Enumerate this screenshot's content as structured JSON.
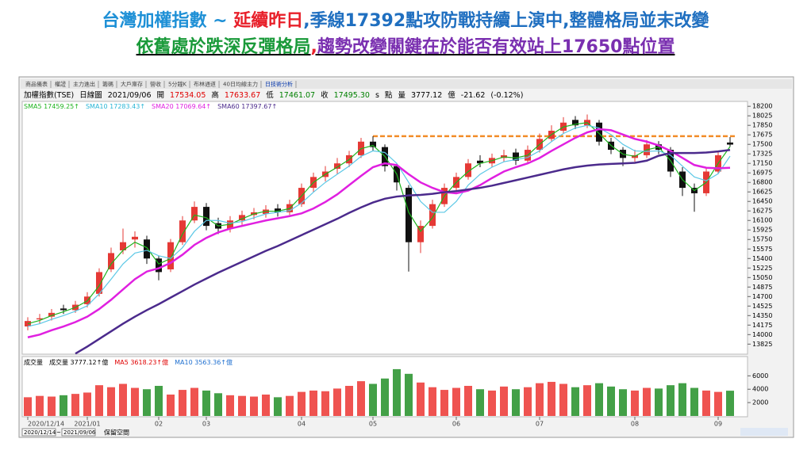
{
  "headline": {
    "line1": [
      {
        "text": "台灣加權指數 ~ ",
        "color": "#1e90d6"
      },
      {
        "text": "延續昨日",
        "color": "#e8202a"
      },
      {
        "text": ",季線17392點攻防戰持續上演中,整體格局並末改變",
        "color": "#1f6fc0"
      }
    ],
    "line2": [
      {
        "text": "依舊處於跌深反彈格局",
        "color": "#1a9a3a"
      },
      {
        "text": ",",
        "color": "#e8202a"
      },
      {
        "text": "趨勢改變關鍵在於能否有效站上17650點位置",
        "color": "#7a2fb0"
      }
    ]
  },
  "tabs": [
    "商品儀表",
    "權證",
    "主力進出",
    "籌碼",
    "大戶庫存",
    "營收",
    "5分鐘K",
    "布林通道",
    "40日均線主力",
    "日技術分析"
  ],
  "info": [
    {
      "text": "加權指數(TSE)",
      "color": "#000"
    },
    {
      "text": "日線圖",
      "color": "#000"
    },
    {
      "text": "2021/09/06",
      "color": "#000"
    },
    {
      "text": "開",
      "color": "#000"
    },
    {
      "text": "17534.05",
      "color": "#e00000"
    },
    {
      "text": "高",
      "color": "#000"
    },
    {
      "text": "17633.67",
      "color": "#e00000"
    },
    {
      "text": "低",
      "color": "#000"
    },
    {
      "text": "17461.07",
      "color": "#008000"
    },
    {
      "text": "收",
      "color": "#000"
    },
    {
      "text": "17495.30",
      "color": "#008000"
    },
    {
      "text": "s",
      "color": "#000"
    },
    {
      "text": "點",
      "color": "#000"
    },
    {
      "text": "量",
      "color": "#000"
    },
    {
      "text": "3777.12",
      "color": "#000"
    },
    {
      "text": "億",
      "color": "#000"
    },
    {
      "text": "-21.62",
      "color": "#000"
    },
    {
      "text": "(-0.12%)",
      "color": "#000"
    }
  ],
  "ma_legend": [
    {
      "text": "SMA5 17459.25↑",
      "color": "#1db31d"
    },
    {
      "text": "SMA10 17283.43↑",
      "color": "#29b6d6"
    },
    {
      "text": "SMA20 17069.64↑",
      "color": "#e020e0"
    },
    {
      "text": "SMA60 17397.67↑",
      "color": "#4b2a8c"
    }
  ],
  "volume_legend": [
    {
      "text": "成交量",
      "color": "#000"
    },
    {
      "text": "成交量 3777.12↑億",
      "color": "#000"
    },
    {
      "text": "MA5 3618.23↑億",
      "color": "#e00000"
    },
    {
      "text": "MA10 3563.36↑億",
      "color": "#1e6fd0"
    }
  ],
  "toolbar": {
    "from": "2020/12/14",
    "sep": "~",
    "to": "2021/09/06",
    "space": "保留空間"
  },
  "chart_data": {
    "type": "candlestick",
    "categories": [
      "2020/12/14",
      null,
      null,
      null,
      null,
      "2021/01",
      null,
      null,
      null,
      null,
      null,
      "02",
      null,
      null,
      null,
      "03",
      null,
      null,
      null,
      null,
      null,
      null,
      null,
      "04",
      null,
      null,
      null,
      null,
      null,
      "05",
      null,
      null,
      null,
      null,
      null,
      null,
      "06",
      null,
      null,
      null,
      null,
      null,
      null,
      "07",
      null,
      null,
      null,
      null,
      null,
      null,
      null,
      "08",
      null,
      null,
      null,
      null,
      null,
      null,
      "09",
      null
    ],
    "open": [
      14150,
      14280,
      14330,
      14480,
      14450,
      14560,
      14750,
      15200,
      15550,
      15750,
      15750,
      15400,
      15200,
      15700,
      16100,
      16350,
      16050,
      15950,
      16100,
      16200,
      16220,
      16320,
      16250,
      16400,
      16700,
      16900,
      17050,
      17150,
      17300,
      17550,
      17450,
      17100,
      16700,
      15700,
      16000,
      16400,
      16700,
      16900,
      17200,
      17150,
      17250,
      17350,
      17200,
      17400,
      17600,
      17750,
      17950,
      17850,
      17900,
      17550,
      17400,
      17250,
      17300,
      17500,
      17400,
      17000,
      16700,
      16600,
      17000,
      17534.05
    ],
    "high": [
      14320,
      14380,
      14470,
      14550,
      14620,
      14780,
      15220,
      15600,
      15950,
      15900,
      15820,
      15450,
      15760,
      16180,
      16450,
      16420,
      16150,
      16180,
      16280,
      16330,
      16380,
      16400,
      16480,
      16780,
      16980,
      17100,
      17250,
      17380,
      17620,
      17650,
      17500,
      17150,
      16750,
      16100,
      16480,
      16780,
      16980,
      17230,
      17300,
      17330,
      17400,
      17420,
      17480,
      17700,
      17850,
      18000,
      18020,
      18050,
      17950,
      17620,
      17450,
      17400,
      17580,
      17560,
      17450,
      17080,
      16780,
      17080,
      17380,
      17633.67
    ],
    "low": [
      14080,
      14200,
      14260,
      14380,
      14400,
      14500,
      14700,
      15150,
      15480,
      15600,
      15300,
      15000,
      15150,
      15650,
      16050,
      15920,
      15850,
      15880,
      16020,
      16120,
      16150,
      16170,
      16200,
      16350,
      16620,
      16820,
      16950,
      17080,
      17250,
      17380,
      17000,
      16650,
      15160,
      15500,
      15950,
      16350,
      16620,
      16850,
      17080,
      17080,
      17180,
      17120,
      17150,
      17350,
      17550,
      17700,
      17780,
      17800,
      17480,
      17320,
      17100,
      17180,
      17250,
      17320,
      16900,
      16550,
      16260,
      16550,
      16950,
      17461.07
    ],
    "close": [
      14250,
      14300,
      14400,
      14450,
      14550,
      14700,
      15150,
      15500,
      15700,
      15800,
      15400,
      15150,
      15700,
      16100,
      16350,
      16000,
      15950,
      16100,
      16200,
      16250,
      16300,
      16250,
      16400,
      16700,
      16900,
      17000,
      17150,
      17300,
      17550,
      17450,
      17100,
      16800,
      15700,
      16000,
      16400,
      16700,
      16900,
      17150,
      17150,
      17250,
      17300,
      17200,
      17400,
      17600,
      17750,
      17900,
      17850,
      17950,
      17550,
      17400,
      17250,
      17300,
      17500,
      17400,
      17000,
      16700,
      16600,
      17000,
      17300,
      17495.3
    ],
    "up_color": "#e53935",
    "down_color": "#111111",
    "series": [
      {
        "name": "SMA5",
        "color": "#1db31d",
        "values": [
          14200,
          14260,
          14350,
          14420,
          14500,
          14620,
          14900,
          15300,
          15550,
          15700,
          15600,
          15300,
          15400,
          15850,
          16200,
          16150,
          16000,
          16030,
          16130,
          16220,
          16270,
          16270,
          16320,
          16550,
          16800,
          16950,
          17080,
          17220,
          17420,
          17480,
          17280,
          16950,
          16250,
          15900,
          16150,
          16550,
          16800,
          17000,
          17150,
          17200,
          17270,
          17250,
          17300,
          17500,
          17680,
          17820,
          17870,
          17900,
          17700,
          17480,
          17320,
          17280,
          17400,
          17450,
          17200,
          16850,
          16650,
          16800,
          17150,
          17459.25
        ]
      },
      {
        "name": "SMA10",
        "color": "#5cc8e6",
        "values": [
          14150,
          14200,
          14280,
          14350,
          14430,
          14530,
          14750,
          15020,
          15300,
          15500,
          15550,
          15450,
          15400,
          15600,
          15900,
          16100,
          16100,
          16050,
          16080,
          16150,
          16220,
          16250,
          16280,
          16420,
          16620,
          16800,
          16950,
          17100,
          17280,
          17380,
          17350,
          17150,
          16800,
          16450,
          16250,
          16250,
          16450,
          16750,
          16950,
          17080,
          17180,
          17220,
          17260,
          17380,
          17550,
          17700,
          17800,
          17850,
          17800,
          17680,
          17500,
          17380,
          17370,
          17380,
          17300,
          17100,
          16900,
          16830,
          16960,
          17283.43
        ]
      },
      {
        "name": "SMA20",
        "color": "#e020e0",
        "values": [
          13950,
          14000,
          14080,
          14150,
          14230,
          14330,
          14470,
          14640,
          14830,
          15020,
          15160,
          15220,
          15320,
          15470,
          15650,
          15780,
          15880,
          15950,
          16000,
          16050,
          16100,
          16140,
          16180,
          16230,
          16320,
          16440,
          16580,
          16750,
          16920,
          17080,
          17150,
          17120,
          16950,
          16800,
          16700,
          16620,
          16600,
          16650,
          16750,
          16880,
          17000,
          17080,
          17150,
          17250,
          17380,
          17500,
          17620,
          17720,
          17780,
          17760,
          17680,
          17600,
          17550,
          17480,
          17380,
          17250,
          17120,
          17070,
          17060,
          17069.64
        ]
      },
      {
        "name": "SMA60",
        "color": "#4b2a8c",
        "values": [
          null,
          null,
          null,
          null,
          13650,
          13780,
          13920,
          14060,
          14200,
          14330,
          14450,
          14560,
          14680,
          14800,
          14920,
          15030,
          15140,
          15240,
          15340,
          15440,
          15540,
          15630,
          15730,
          15830,
          15930,
          16030,
          16130,
          16240,
          16340,
          16430,
          16500,
          16540,
          16560,
          16570,
          16590,
          16620,
          16640,
          16670,
          16700,
          16740,
          16790,
          16840,
          16890,
          16940,
          16990,
          17040,
          17080,
          17110,
          17130,
          17140,
          17150,
          17160,
          17200,
          17290,
          17340,
          17340,
          17340,
          17350,
          17370,
          17397.67
        ]
      }
    ],
    "reference_line": {
      "value": 17650,
      "color": "#f28c28"
    },
    "ylim": [
      13640,
      18290
    ],
    "yticks": [
      18200,
      18025,
      17850,
      17675,
      17500,
      17325,
      17150,
      16975,
      16800,
      16625,
      16450,
      16275,
      16100,
      15925,
      15750,
      15575,
      15400,
      15225,
      15050,
      14875,
      14700,
      14525,
      14350,
      14175,
      14000,
      13825
    ],
    "volume": {
      "values": [
        2800,
        3000,
        2900,
        3100,
        3300,
        3500,
        4600,
        4300,
        4800,
        4200,
        4000,
        4500,
        3200,
        3900,
        4200,
        3800,
        3400,
        3100,
        3000,
        2900,
        3200,
        2800,
        3000,
        3600,
        3800,
        3700,
        4100,
        4500,
        5200,
        4800,
        5600,
        7000,
        6300,
        5000,
        4300,
        3900,
        4200,
        4500,
        4000,
        3800,
        4400,
        4000,
        4300,
        4900,
        5100,
        4800,
        4300,
        4600,
        4900,
        4400,
        4000,
        3800,
        4200,
        4100,
        4600,
        4900,
        4200,
        3800,
        3600,
        3777.12
      ],
      "up_color": "#ef5350",
      "down_color": "#43a047",
      "ylim": [
        0,
        7700
      ],
      "yticks": [
        2000,
        4000,
        6000
      ]
    }
  }
}
